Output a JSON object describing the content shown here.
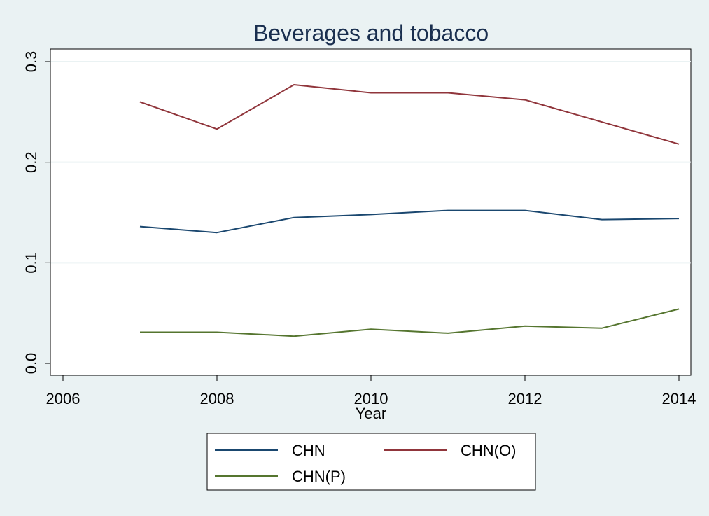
{
  "chart_data": {
    "type": "line",
    "title": "Beverages and tobacco",
    "xlabel": "Year",
    "ylabel": "",
    "xlim": [
      2006,
      2014
    ],
    "ylim": [
      0,
      0.3
    ],
    "x_ticks": [
      2006,
      2008,
      2010,
      2012,
      2014
    ],
    "x_tick_labels": [
      "2006",
      "2008",
      "2010",
      "2012",
      "2014"
    ],
    "y_ticks": [
      0,
      0.1,
      0.2,
      0.3
    ],
    "y_tick_labels": [
      "0.0",
      "0.1",
      "0.2",
      "0.3"
    ],
    "grid": "horizontal",
    "legend_position": "bottom",
    "x": [
      2007,
      2008,
      2009,
      2010,
      2011,
      2012,
      2013,
      2014
    ],
    "series": [
      {
        "name": "CHN",
        "color": "#1a476f",
        "values": [
          0.136,
          0.13,
          0.145,
          0.148,
          0.152,
          0.152,
          0.143,
          0.144
        ]
      },
      {
        "name": "CHN(O)",
        "color": "#90353b",
        "values": [
          0.26,
          0.233,
          0.277,
          0.269,
          0.269,
          0.262,
          0.24,
          0.218
        ]
      },
      {
        "name": "CHN(P)",
        "color": "#55752f",
        "values": [
          0.031,
          0.031,
          0.027,
          0.034,
          0.03,
          0.037,
          0.035,
          0.054
        ]
      }
    ]
  }
}
